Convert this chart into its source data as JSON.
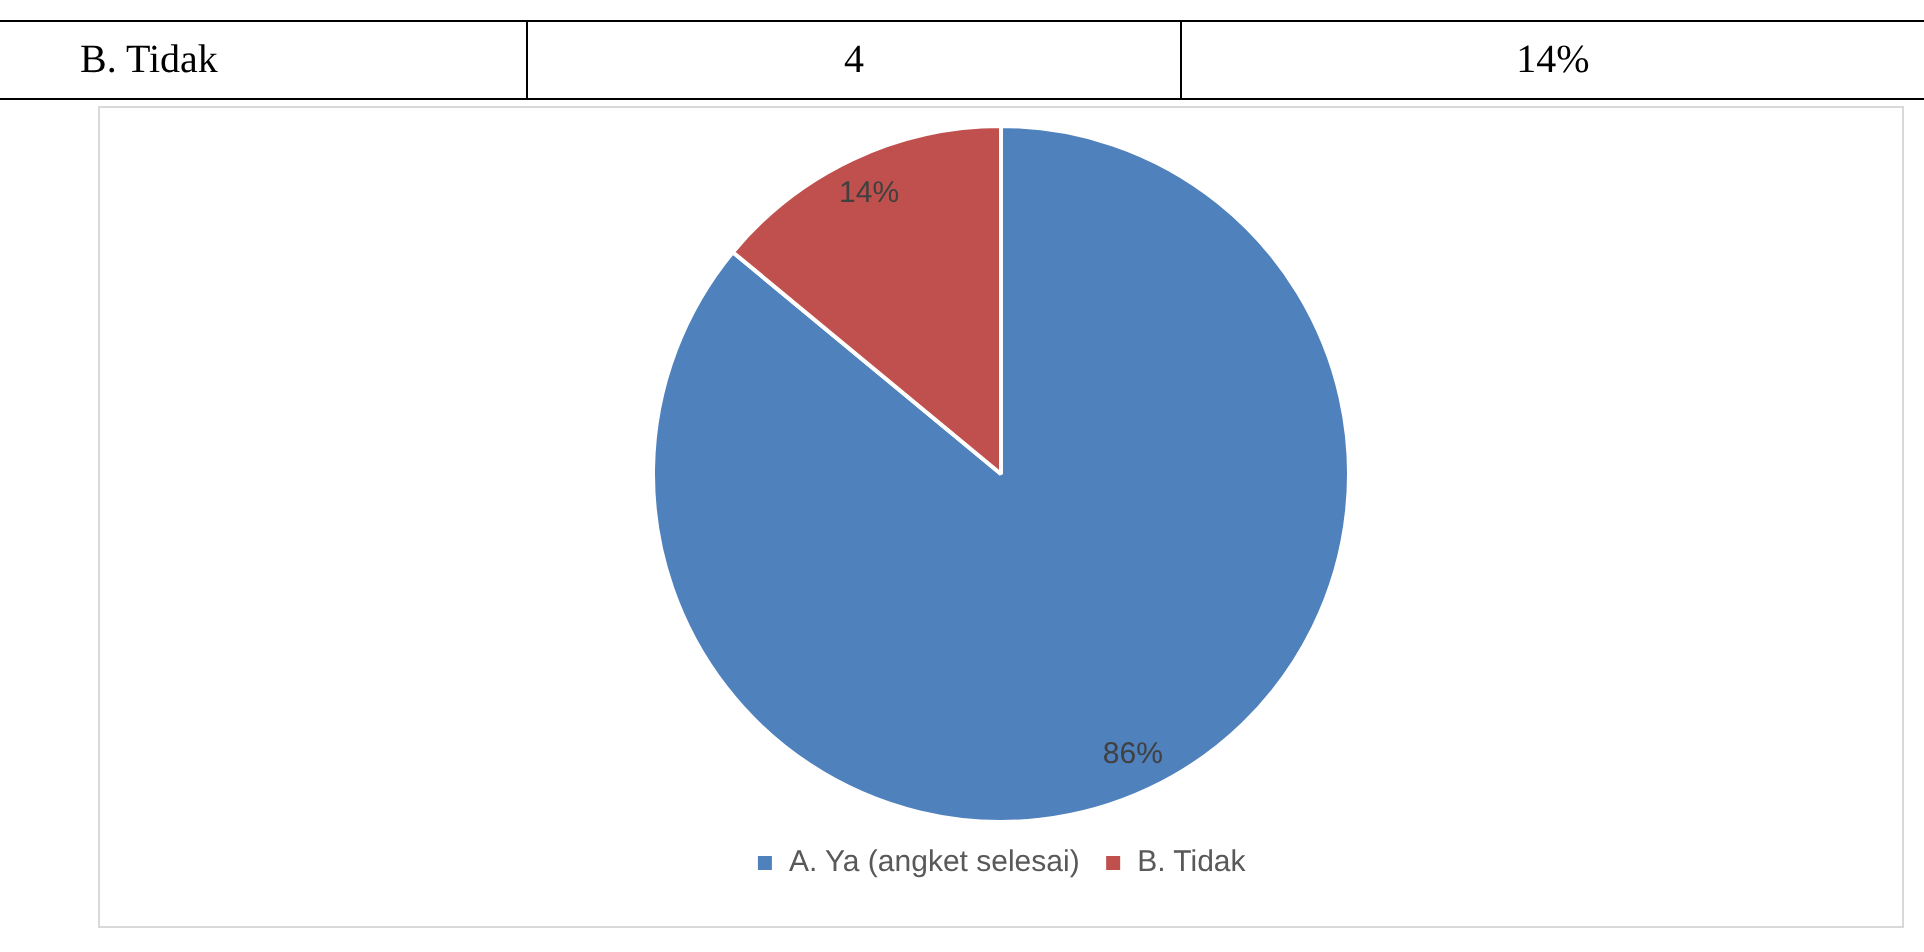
{
  "chart_data": {
    "type": "pie",
    "annotations": [
      "B.  Tidak",
      "4",
      "14%"
    ],
    "categories": [
      "A. Ya (angket selesai)",
      "B. Tidak"
    ],
    "values": [
      86,
      14
    ],
    "colors": [
      "#4f81bd",
      "#c0504d"
    ],
    "value_labels": [
      "86%",
      "14%"
    ],
    "legend": "bottom"
  }
}
